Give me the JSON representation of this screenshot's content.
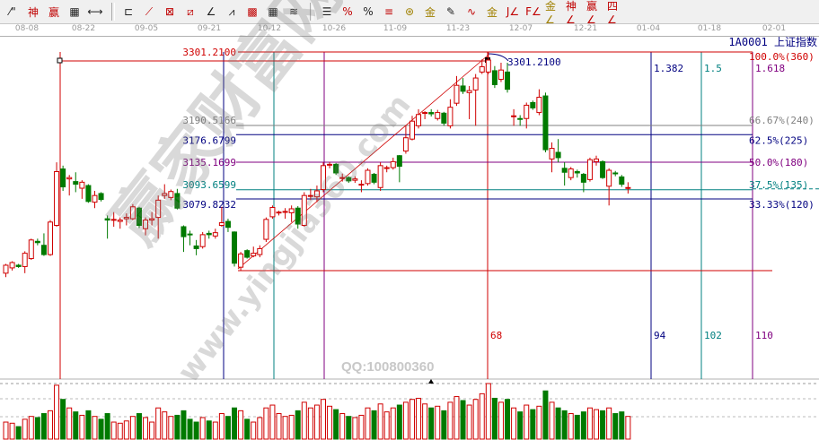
{
  "toolbar": {
    "icons": [
      {
        "name": "line-tool-icon",
        "glyph": "⁄\"",
        "color": "normal"
      },
      {
        "name": "fib-red-icon",
        "glyph": "神",
        "color": "red"
      },
      {
        "name": "fib-wave-icon",
        "glyph": "赢",
        "color": "red"
      },
      {
        "name": "grid-box-icon",
        "glyph": "▦",
        "color": "normal"
      },
      {
        "name": "measure-icon",
        "glyph": "⟷",
        "color": "normal"
      },
      {
        "name": "box-tool-icon",
        "glyph": "⊏",
        "color": "normal"
      },
      {
        "name": "fan-lines-icon",
        "glyph": "⟋",
        "color": "red"
      },
      {
        "name": "gann-box-icon",
        "glyph": "⊠",
        "color": "red"
      },
      {
        "name": "gann-square-icon",
        "glyph": "⧄",
        "color": "red"
      },
      {
        "name": "angle-icon",
        "glyph": "∠",
        "color": "normal"
      },
      {
        "name": "zigzag-icon",
        "glyph": "⩘",
        "color": "normal"
      },
      {
        "name": "grid-icon",
        "glyph": "▩",
        "color": "red"
      },
      {
        "name": "grid-dark-icon",
        "glyph": "▦",
        "color": "normal"
      },
      {
        "name": "parallel-lines-icon",
        "glyph": "≋",
        "color": "normal"
      },
      {
        "name": "fib-levels-icon",
        "glyph": "☰",
        "color": "normal"
      },
      {
        "name": "percent-fan-icon",
        "glyph": "%",
        "color": "red"
      },
      {
        "name": "percent-icon",
        "glyph": "%",
        "color": "normal"
      },
      {
        "name": "percent-lines-icon",
        "glyph": "≡",
        "color": "red"
      },
      {
        "name": "gold-coin-icon",
        "glyph": "⊛",
        "color": "gold"
      },
      {
        "name": "gold-lines-icon",
        "glyph": "金",
        "color": "gold"
      },
      {
        "name": "pen-icon",
        "glyph": "✎",
        "color": "normal"
      },
      {
        "name": "wave-icon",
        "glyph": "∿",
        "color": "red"
      },
      {
        "name": "gold-icon",
        "glyph": "金",
        "color": "gold"
      },
      {
        "name": "j-angle-icon",
        "glyph": "J∠",
        "color": "red"
      },
      {
        "name": "f-angle-icon",
        "glyph": "F∠",
        "color": "red"
      },
      {
        "name": "gold-angle-icon",
        "glyph": "金∠",
        "color": "gold"
      },
      {
        "name": "shen-angle-icon",
        "glyph": "神∠",
        "color": "red"
      },
      {
        "name": "ying-angle-icon",
        "glyph": "赢∠",
        "color": "red"
      },
      {
        "name": "four-angle-icon",
        "glyph": "四∠",
        "color": "red"
      }
    ]
  },
  "symbol": "1A0001 上证指数",
  "watermark": {
    "text": "赢家财富网",
    "url": "www.yingjia360.com",
    "qq": "QQ:100800360"
  },
  "colors": {
    "up": "#d00000",
    "down": "#007a00",
    "peak_line": "#d00000",
    "fib_gray": "#808080",
    "fib_navy": "#000080",
    "fib_purple": "#800080",
    "fib_teal": "#008080"
  },
  "chart_data": {
    "type": "candlestick",
    "x_tick_labels": [
      "08-08",
      "08-22",
      "09-05",
      "09-21",
      "10-12",
      "10-26",
      "11-09",
      "11-23",
      "12-07",
      "12-21",
      "01-04",
      "01-18",
      "02-01"
    ],
    "ohlc_columns": [
      "open",
      "close",
      "high",
      "low"
    ],
    "ohlc": [
      [
        2968,
        2980,
        2982,
        2962
      ],
      [
        2976,
        2984,
        2986,
        2972
      ],
      [
        2980,
        2978,
        2982,
        2976
      ],
      [
        2978,
        2998,
        3001,
        2968
      ],
      [
        2990,
        3018,
        3020,
        2988
      ],
      [
        3016,
        3014,
        3020,
        3010
      ],
      [
        3010,
        2996,
        3028,
        2994
      ],
      [
        2996,
        3045,
        3048,
        2994
      ],
      [
        3040,
        3121,
        3135,
        3038
      ],
      [
        3125,
        3098,
        3130,
        3092
      ],
      [
        3110,
        3112,
        3116,
        3085
      ],
      [
        3106,
        3102,
        3120,
        3090
      ],
      [
        3096,
        3105,
        3108,
        3080
      ],
      [
        3100,
        3076,
        3102,
        3074
      ],
      [
        3075,
        3085,
        3092,
        3066
      ],
      [
        3088,
        3079,
        3090,
        3076
      ],
      [
        3050,
        3048,
        3055,
        3020
      ],
      [
        3048,
        3049,
        3060,
        3038
      ],
      [
        3046,
        3048,
        3052,
        3035
      ],
      [
        3050,
        3052,
        3058,
        3040
      ],
      [
        3050,
        3068,
        3072,
        3048
      ],
      [
        3066,
        3040,
        3068,
        3036
      ],
      [
        3035,
        3048,
        3052,
        3025
      ],
      [
        3048,
        3050,
        3060,
        3040
      ],
      [
        3052,
        3078,
        3085,
        3020
      ],
      [
        3085,
        3088,
        3102,
        3080
      ],
      [
        3082,
        3091,
        3094,
        3078
      ],
      [
        3088,
        3066,
        3095,
        3064
      ],
      [
        3038,
        3023,
        3040,
        3000
      ],
      [
        3027,
        3026,
        3032,
        3010
      ],
      [
        3009,
        3005,
        3018,
        2995
      ],
      [
        3008,
        3026,
        3030,
        3005
      ],
      [
        3028,
        3026,
        3032,
        3020
      ],
      [
        3024,
        3029,
        3035,
        3020
      ],
      [
        3040,
        3044,
        3068,
        3038
      ],
      [
        3046,
        3037,
        3050,
        3030
      ],
      [
        3030,
        2983,
        3031,
        2978
      ],
      [
        2977,
        2997,
        3000,
        2972
      ],
      [
        3002,
        2992,
        3004,
        2990
      ],
      [
        2994,
        2998,
        3008,
        2992
      ],
      [
        2996,
        3005,
        3010,
        2992
      ],
      [
        3019,
        3049,
        3052,
        3015
      ],
      [
        3053,
        3067,
        3070,
        3050
      ],
      [
        3059,
        3060,
        3062,
        3055
      ],
      [
        3060,
        3061,
        3066,
        3050
      ],
      [
        3059,
        3065,
        3070,
        3045
      ],
      [
        3066,
        3042,
        3069,
        3035
      ],
      [
        3040,
        3085,
        3090,
        3038
      ],
      [
        3085,
        3085,
        3095,
        3078
      ],
      [
        3083,
        3092,
        3100,
        3075
      ],
      [
        3094,
        3130,
        3135,
        3090
      ],
      [
        3131,
        3132,
        3135,
        3126
      ],
      [
        3132,
        3119,
        3134,
        3116
      ],
      [
        3112,
        3112,
        3118,
        3106
      ],
      [
        3112,
        3107,
        3114,
        3104
      ],
      [
        3108,
        3110,
        3114,
        3104
      ],
      [
        3101,
        3102,
        3108,
        3090
      ],
      [
        3103,
        3123,
        3126,
        3100
      ],
      [
        3117,
        3105,
        3119,
        3102
      ],
      [
        3097,
        3130,
        3135,
        3092
      ],
      [
        3126,
        3127,
        3130,
        3120
      ],
      [
        3127,
        3136,
        3142,
        3124
      ],
      [
        3145,
        3129,
        3146,
        3105
      ],
      [
        3152,
        3172,
        3190,
        3148
      ],
      [
        3170,
        3197,
        3205,
        3168
      ],
      [
        3190,
        3207,
        3215,
        3186
      ],
      [
        3209,
        3210,
        3212,
        3200
      ],
      [
        3210,
        3208,
        3215,
        3204
      ],
      [
        3201,
        3210,
        3214,
        3198
      ],
      [
        3209,
        3194,
        3211,
        3190
      ],
      [
        3190,
        3218,
        3230,
        3186
      ],
      [
        3224,
        3251,
        3265,
        3220
      ],
      [
        3250,
        3242,
        3262,
        3238
      ],
      [
        3240,
        3243,
        3250,
        3200
      ],
      [
        3244,
        3262,
        3268,
        3190
      ],
      [
        3271,
        3279,
        3290,
        3268
      ],
      [
        3271,
        3289,
        3301.21,
        3268
      ],
      [
        3273,
        3252,
        3280,
        3247
      ],
      [
        3260,
        3274,
        3285,
        3256
      ],
      [
        3271,
        3245,
        3285,
        3240
      ],
      [
        3204,
        3205,
        3215,
        3190
      ],
      [
        3201,
        3200,
        3206,
        3190
      ],
      [
        3201,
        3221,
        3225,
        3186
      ],
      [
        3225,
        3217,
        3228,
        3214
      ],
      [
        3210,
        3233,
        3245,
        3206
      ],
      [
        3235,
        3154,
        3240,
        3150
      ],
      [
        3140,
        3156,
        3165,
        3120
      ],
      [
        3150,
        3142,
        3170,
        3135
      ],
      [
        3126,
        3120,
        3135,
        3100
      ],
      [
        3112,
        3125,
        3128,
        3108
      ],
      [
        3121,
        3119,
        3124,
        3112
      ],
      [
        3117,
        3105,
        3119,
        3090
      ],
      [
        3109,
        3139,
        3142,
        3106
      ],
      [
        3136,
        3140,
        3145,
        3130
      ],
      [
        3136,
        3112,
        3138,
        3110
      ],
      [
        3099,
        3123,
        3126,
        3070
      ],
      [
        3119,
        3118,
        3122,
        3114
      ],
      [
        3113,
        3102,
        3116,
        3098
      ],
      [
        3097,
        3097,
        3105,
        3088
      ]
    ],
    "volume_relative": [
      30,
      28,
      22,
      35,
      40,
      38,
      45,
      50,
      95,
      70,
      55,
      48,
      42,
      50,
      40,
      35,
      45,
      30,
      28,
      32,
      40,
      45,
      38,
      30,
      55,
      48,
      40,
      42,
      50,
      35,
      30,
      38,
      32,
      30,
      45,
      40,
      55,
      50,
      35,
      30,
      38,
      55,
      60,
      45,
      40,
      42,
      50,
      65,
      55,
      60,
      70,
      58,
      52,
      45,
      40,
      38,
      42,
      55,
      50,
      62,
      48,
      55,
      60,
      65,
      70,
      72,
      62,
      55,
      58,
      50,
      65,
      75,
      68,
      60,
      70,
      80,
      98,
      72,
      65,
      70,
      55,
      48,
      60,
      52,
      58,
      85,
      65,
      55,
      50,
      45,
      42,
      48,
      55,
      52,
      50,
      55,
      45,
      48,
      40
    ],
    "peak": {
      "label": "3301.2100",
      "value": 3301.21
    },
    "y_range": [
      2960,
      3310
    ],
    "fib_retracement": [
      {
        "price_label": "3301.2100",
        "pct_label": "100.0%(360)",
        "value": 3301.21,
        "color": "#d00000"
      },
      {
        "price_label": "3190.5166",
        "pct_label": "66.67%(240)",
        "value": 3190.5166,
        "color": "#808080"
      },
      {
        "price_label": "3176.6799",
        "pct_label": "62.5%(225)",
        "value": 3176.6799,
        "color": "#000080"
      },
      {
        "price_label": "3135.1699",
        "pct_label": "50.0%(180)",
        "value": 3135.1699,
        "color": "#800080"
      },
      {
        "price_label": "3093.6599",
        "pct_label": "37.5%(135)",
        "value": 3093.6599,
        "color": "#008080"
      },
      {
        "price_label": "3079.8232",
        "pct_label": "33.33%(120)",
        "value": 3079.8232,
        "color": "#000080"
      }
    ],
    "low_line_value": 2971.8,
    "time_zones": [
      {
        "bar_label": "68",
        "ratio_label": "",
        "color": "#d00000"
      },
      {
        "bar_label": "94",
        "ratio_label": "1.382",
        "color": "#000080"
      },
      {
        "bar_label": "102",
        "ratio_label": "1.5",
        "color": "#008080"
      },
      {
        "bar_label": "110",
        "ratio_label": "1.618",
        "color": "#800080"
      }
    ]
  }
}
